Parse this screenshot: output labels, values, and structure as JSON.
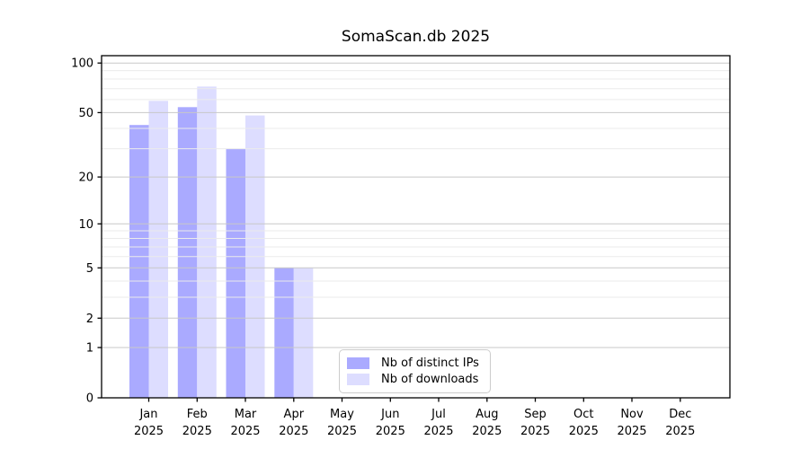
{
  "chart_data": {
    "type": "bar",
    "title": "SomaScan.db 2025",
    "categories": [
      "Jan",
      "Feb",
      "Mar",
      "Apr",
      "May",
      "Jun",
      "Jul",
      "Aug",
      "Sep",
      "Oct",
      "Nov",
      "Dec"
    ],
    "x_tick_second_line": "2025",
    "series": [
      {
        "name": "Nb of distinct IPs",
        "color": "#aaaaff",
        "values": [
          42,
          54,
          30,
          5,
          0,
          0,
          0,
          0,
          0,
          0,
          0,
          0
        ]
      },
      {
        "name": "Nb of downloads",
        "color": "#ddddff",
        "values": [
          59,
          72,
          48,
          5,
          0,
          0,
          0,
          0,
          0,
          0,
          0,
          0
        ]
      }
    ],
    "xlabel": "",
    "ylabel": "",
    "yscale": "log1p",
    "ylim": [
      0,
      111
    ],
    "y_major_ticks": [
      0,
      1,
      2,
      5,
      10,
      20,
      50,
      100
    ],
    "y_minor_ticks": [
      3,
      4,
      6,
      7,
      8,
      9,
      30,
      40,
      60,
      70,
      80,
      90
    ],
    "grid": true,
    "legend_position": "lower-center-inside"
  },
  "colors": {
    "background": "#ffffff",
    "axis": "#000000",
    "major_grid": "#c8c8c8",
    "minor_grid": "#ebebeb",
    "legend_border": "#cccccc",
    "text": "#000000"
  }
}
